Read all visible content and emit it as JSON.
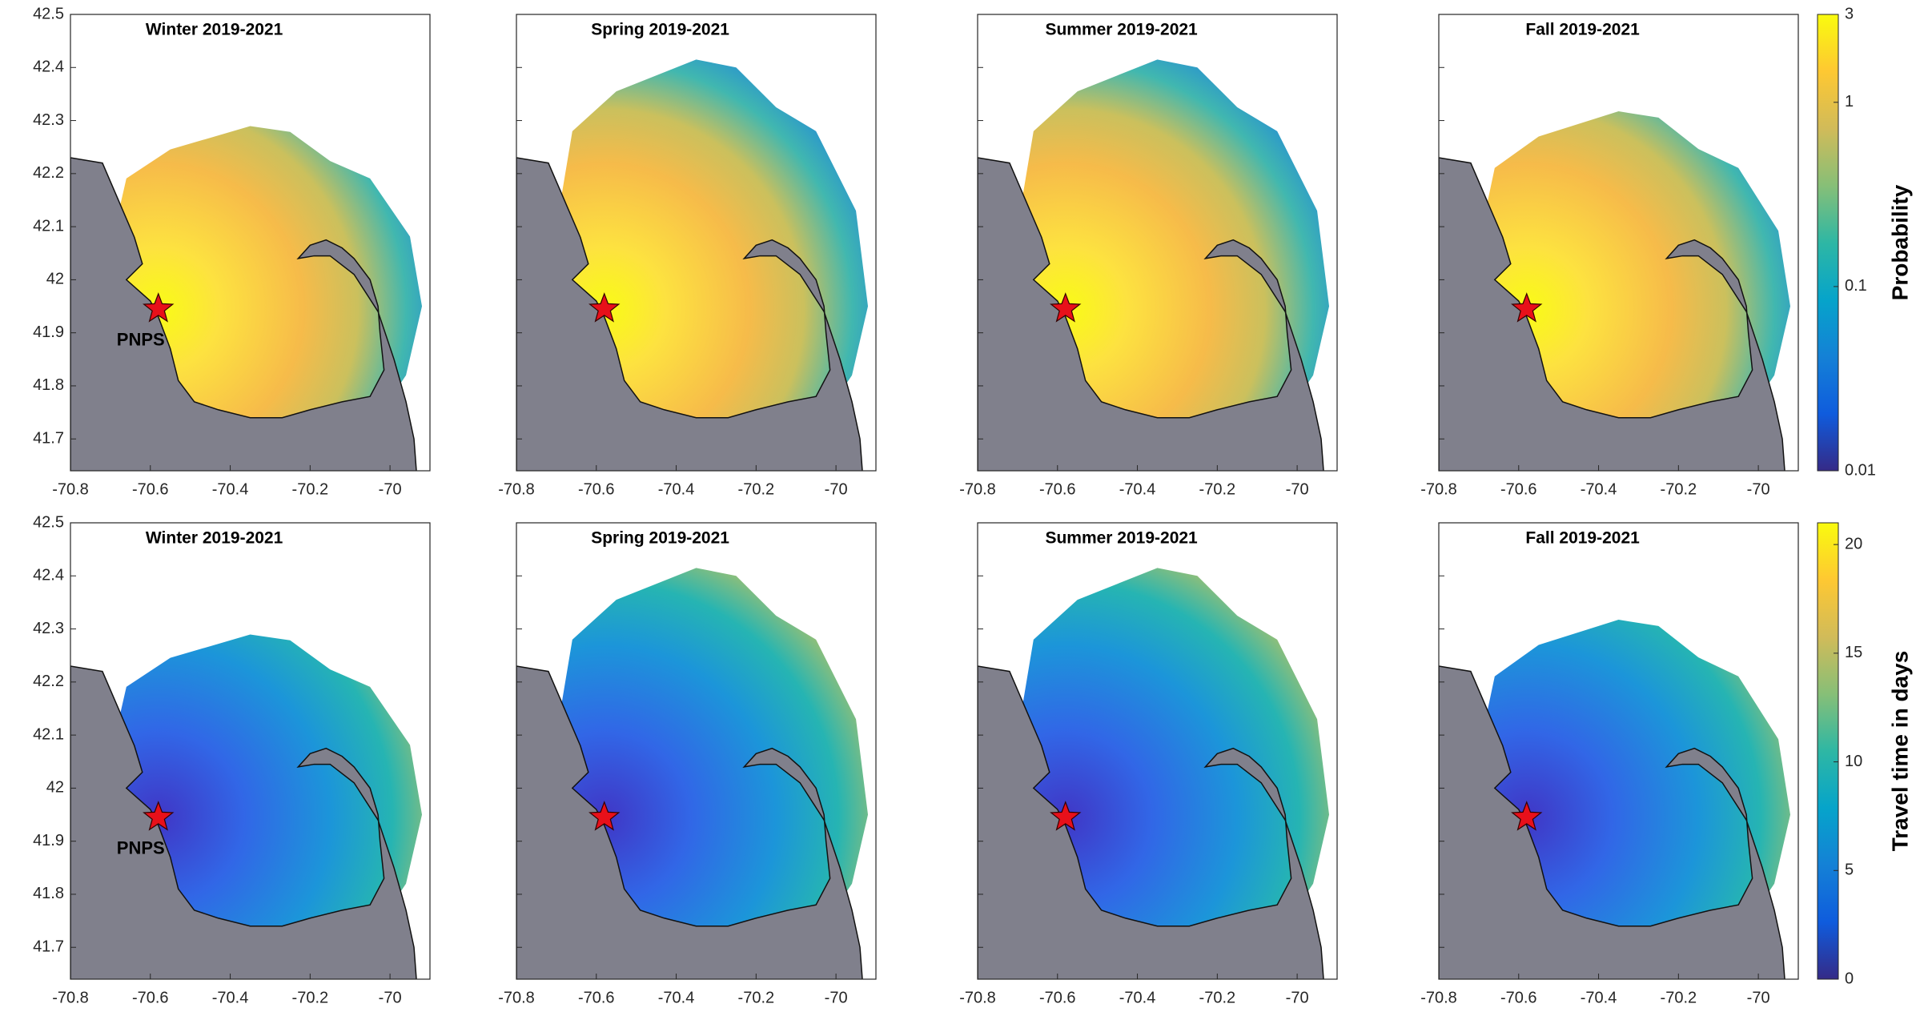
{
  "chart_data": {
    "type": "map",
    "panels": [
      {
        "title": "Winter 2019-2021",
        "site_label": "PNPS"
      },
      {
        "title": "Spring 2019-2021"
      },
      {
        "title": "Summer 2019-2021"
      },
      {
        "title": "Fall 2019-2021"
      },
      {
        "title": "Winter 2019-2021",
        "site_label": "PNPS"
      },
      {
        "title": "Spring 2019-2021"
      },
      {
        "title": "Summer 2019-2021"
      },
      {
        "title": "Fall 2019-2021"
      }
    ],
    "xlim": [
      -70.8,
      -69.9
    ],
    "xticks": [
      -70.8,
      -70.6,
      -70.4,
      -70.2,
      -70
    ],
    "ylim": [
      41.64,
      42.5
    ],
    "yticks": [
      41.7,
      41.8,
      41.9,
      42,
      42.1,
      42.2,
      42.3,
      42.4,
      42.5
    ],
    "site": {
      "lon": -70.58,
      "lat": 41.945
    },
    "colorbars": [
      {
        "label": "Probability",
        "scale": "log",
        "lim": [
          0.01,
          3
        ],
        "ticks": [
          0.01,
          0.1,
          1,
          3
        ]
      },
      {
        "label": "Travel time in days",
        "scale": "linear",
        "lim": [
          0,
          21
        ],
        "ticks": [
          0,
          5,
          10,
          15,
          20
        ]
      }
    ]
  }
}
